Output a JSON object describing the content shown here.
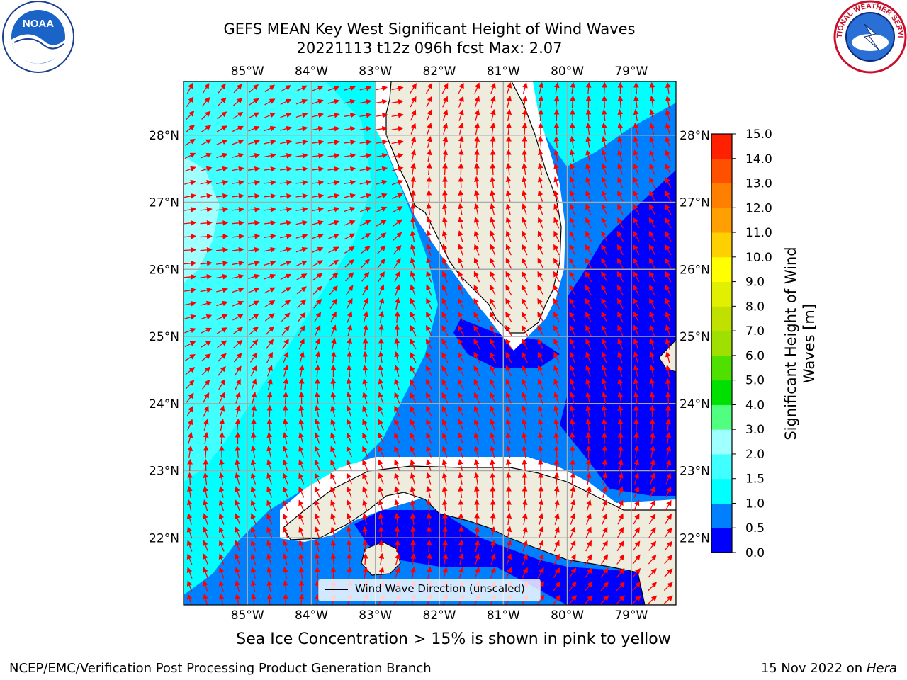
{
  "title": {
    "line1": "GEFS MEAN Key West Significant Height of Wind Waves",
    "line2": "20221113 t12z 096h fcst   Max: 2.07"
  },
  "logos": {
    "left": "noaa-logo",
    "right": "national-weather-service-logo",
    "left_text": "NOAA",
    "right_text": "NATIONAL WEATHER SERVICE"
  },
  "map": {
    "lon_labels": [
      "85°W",
      "84°W",
      "83°W",
      "82°W",
      "81°W",
      "80°W",
      "79°W"
    ],
    "lat_labels": [
      "28°N",
      "27°N",
      "26°N",
      "25°N",
      "24°N",
      "23°N",
      "22°N"
    ],
    "lon_range": [
      -86.0,
      -78.3
    ],
    "lat_range": [
      21.0,
      28.8
    ],
    "arrow_color": "#ff0000",
    "land_color": "#eeecdc"
  },
  "legend": {
    "label": "Wind Wave Direction (unscaled)"
  },
  "colorbar": {
    "label": "Significant Height of Wind Waves [m]",
    "ticks": [
      "0.0",
      "0.5",
      "1.0",
      "1.5",
      "2.0",
      "3.0",
      "4.0",
      "5.0",
      "6.0",
      "7.0",
      "8.0",
      "9.0",
      "10.0",
      "11.0",
      "12.0",
      "13.0",
      "14.0",
      "15.0"
    ],
    "colors": [
      "#0000ff",
      "#0080ff",
      "#00ffff",
      "#40ffff",
      "#a0ffff",
      "#50ff80",
      "#00e000",
      "#50e000",
      "#a0e000",
      "#c0e000",
      "#e0f000",
      "#ffff00",
      "#ffd000",
      "#ffa000",
      "#ff8000",
      "#ff5000",
      "#ff2000",
      "#ff0000"
    ]
  },
  "ice_note": "Sea Ice Concentration > 15% is shown in pink to yellow",
  "footer": {
    "left": "NCEP/EMC/Verification Post Processing Product Generation Branch",
    "date": "15 Nov 2022 on",
    "host": "Hera"
  }
}
